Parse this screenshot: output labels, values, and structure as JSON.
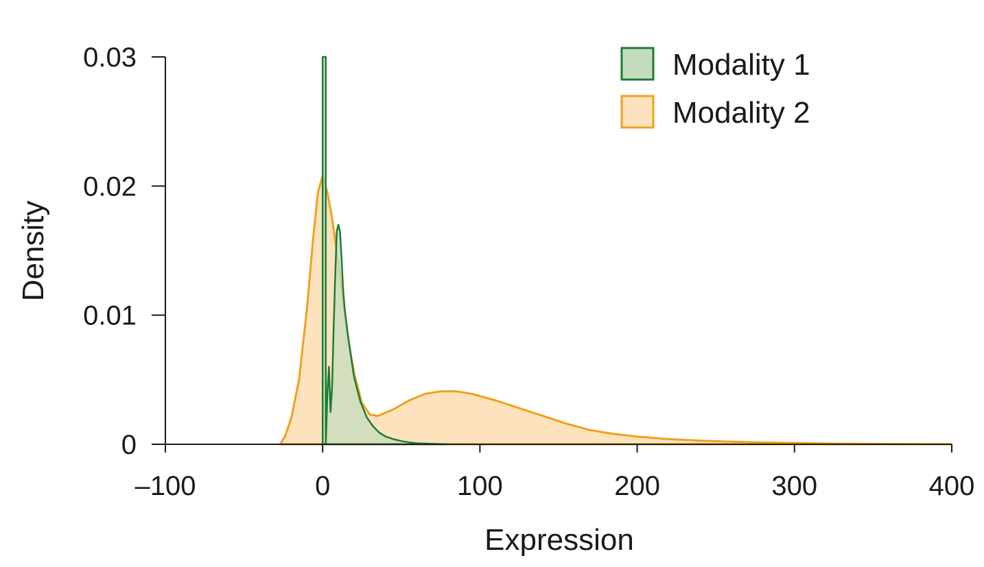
{
  "chart_data": {
    "type": "area",
    "xlabel": "Expression",
    "ylabel": "Density",
    "xlim": [
      -100,
      400
    ],
    "ylim": [
      0,
      0.03
    ],
    "x_ticks": [
      -100,
      0,
      100,
      200,
      300,
      400
    ],
    "x_tick_labels": [
      "–100",
      "0",
      "100",
      "200",
      "300",
      "400"
    ],
    "y_ticks": [
      0,
      0.01,
      0.02,
      0.03
    ],
    "y_tick_labels": [
      "0",
      "0.01",
      "0.02",
      "0.03"
    ],
    "grid": false,
    "legend": "top-right",
    "series": [
      {
        "name": "Modality 1",
        "stroke": "#1e7b34",
        "fill": "#c3dcbf",
        "points": [
          [
            0,
            0
          ],
          [
            0,
            0.03
          ],
          [
            1,
            0.03
          ],
          [
            2,
            0.03
          ],
          [
            2,
            0.0
          ],
          [
            3,
            0.004
          ],
          [
            4,
            0.006
          ],
          [
            5,
            0.0025
          ],
          [
            6,
            0.0045
          ],
          [
            7,
            0.009
          ],
          [
            8,
            0.013
          ],
          [
            9,
            0.0165
          ],
          [
            10,
            0.017
          ],
          [
            11,
            0.0165
          ],
          [
            12,
            0.0145
          ],
          [
            13,
            0.012
          ],
          [
            14,
            0.0105
          ],
          [
            16,
            0.0085
          ],
          [
            18,
            0.0068
          ],
          [
            20,
            0.0052
          ],
          [
            24,
            0.0033
          ],
          [
            28,
            0.0021
          ],
          [
            32,
            0.0014
          ],
          [
            36,
            0.0009
          ],
          [
            40,
            0.0006
          ],
          [
            45,
            0.0004
          ],
          [
            50,
            0.00025
          ],
          [
            55,
            0.00015
          ],
          [
            60,
            8e-05
          ],
          [
            70,
            3e-05
          ],
          [
            80,
            0.0
          ]
        ]
      },
      {
        "name": "Modality 2",
        "stroke": "#f0a01e",
        "fill": "#fde3bd",
        "points": [
          [
            -27,
            0.0
          ],
          [
            -24,
            0.0006
          ],
          [
            -20,
            0.002
          ],
          [
            -15,
            0.005
          ],
          [
            -10,
            0.0105
          ],
          [
            -6,
            0.016
          ],
          [
            -3,
            0.0195
          ],
          [
            0,
            0.0208
          ],
          [
            3,
            0.0195
          ],
          [
            6,
            0.0175
          ],
          [
            10,
            0.014
          ],
          [
            15,
            0.009
          ],
          [
            20,
            0.0055
          ],
          [
            25,
            0.0032
          ],
          [
            30,
            0.0023
          ],
          [
            35,
            0.0022
          ],
          [
            45,
            0.0027
          ],
          [
            55,
            0.0034
          ],
          [
            65,
            0.0039
          ],
          [
            75,
            0.0041
          ],
          [
            85,
            0.0041
          ],
          [
            95,
            0.0039
          ],
          [
            110,
            0.0034
          ],
          [
            125,
            0.0028
          ],
          [
            140,
            0.0022
          ],
          [
            155,
            0.0016
          ],
          [
            170,
            0.0011
          ],
          [
            185,
            0.0008
          ],
          [
            200,
            0.0006
          ],
          [
            220,
            0.0004
          ],
          [
            240,
            0.00028
          ],
          [
            260,
            0.0002
          ],
          [
            280,
            0.00014
          ],
          [
            300,
            0.0001
          ],
          [
            330,
            5e-05
          ],
          [
            360,
            2e-05
          ],
          [
            400,
            0.0
          ]
        ]
      }
    ]
  }
}
